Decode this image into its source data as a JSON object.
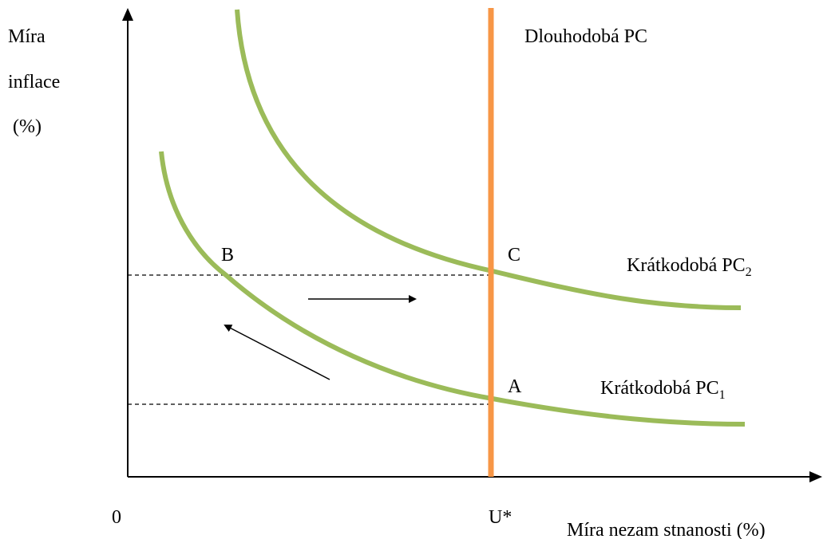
{
  "y_axis_label": [
    "Míra",
    "inflace",
    "(%)"
  ],
  "x_axis_label": "Míra nezam stnanosti (%)",
  "origin_label": "0",
  "natural_rate_label": "U*",
  "long_run_curve": {
    "label": "Dlouhodobá PC"
  },
  "short_run_curves": [
    {
      "label": "Krátkodobá PC",
      "subscript": "1"
    },
    {
      "label": "Krátkodobá PC",
      "subscript": "2"
    }
  ],
  "points": [
    "A",
    "B",
    "C"
  ]
}
